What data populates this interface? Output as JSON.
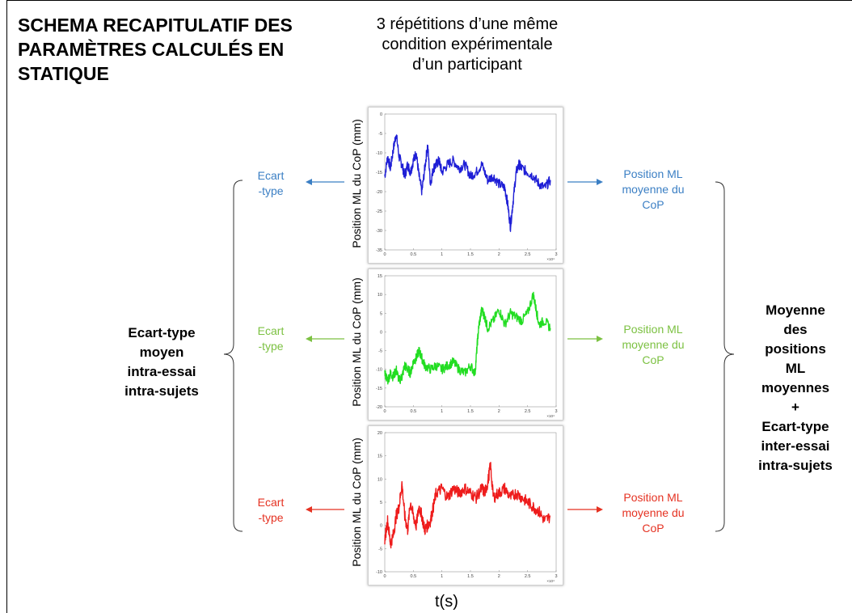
{
  "title": "SCHEMA RECAPITULATIF DES PARAMÈTRES CALCULÉS EN STATIQUE",
  "subtitle": "3 répétitions d’une même condition expérimentale d’un participant",
  "x_axis_label": "t(s)",
  "left_summary": [
    "Ecart-type",
    "moyen",
    "intra-essai",
    "intra-sujets"
  ],
  "right_summary": [
    "Moyenne",
    "des",
    "positions",
    "ML",
    "moyennes",
    "+",
    "Ecart-type",
    "inter-essai",
    "intra-sujets"
  ],
  "trials": [
    {
      "color": "#1f1fd6",
      "text_color": "#3b7fc4",
      "ylabel": "Position ML du CoP (mm)",
      "left_annotation": [
        "Ecart",
        "-type"
      ],
      "right_annotation": [
        "Position ML",
        "moyenne du",
        "CoP"
      ]
    },
    {
      "color": "#22dd22",
      "text_color": "#7cc142",
      "ylabel": "Position ML du CoP (mm)",
      "left_annotation": [
        "Ecart",
        "-type"
      ],
      "right_annotation": [
        "Position ML",
        "moyenne du",
        "CoP"
      ]
    },
    {
      "color": "#ee1c1c",
      "text_color": "#e53222",
      "ylabel": "Position ML du CoP (mm)",
      "left_annotation": [
        "Ecart",
        "-type"
      ],
      "right_annotation": [
        "Position ML",
        "moyenne du",
        "CoP"
      ]
    }
  ],
  "chart_data": [
    {
      "type": "line",
      "series": [
        {
          "color": "#1f1fd6",
          "x": [
            0,
            0.05,
            0.1,
            0.15,
            0.2,
            0.25,
            0.3,
            0.35,
            0.4,
            0.45,
            0.5,
            0.55,
            0.6,
            0.65,
            0.7,
            0.75,
            0.8,
            0.85,
            0.9,
            0.95,
            1.0,
            1.1,
            1.2,
            1.3,
            1.4,
            1.5,
            1.6,
            1.7,
            1.8,
            1.9,
            2.0,
            2.1,
            2.15,
            2.2,
            2.25,
            2.3,
            2.35,
            2.4,
            2.5,
            2.6,
            2.7,
            2.8,
            2.9
          ],
          "y": [
            -16,
            -11,
            -14,
            -9,
            -5,
            -11,
            -13,
            -16,
            -13,
            -15,
            -12,
            -10,
            -16,
            -20,
            -14,
            -8,
            -18,
            -14,
            -13,
            -12,
            -15,
            -13,
            -12,
            -14,
            -13,
            -16,
            -15,
            -13,
            -17,
            -16,
            -18,
            -19,
            -23,
            -29,
            -22,
            -15,
            -13,
            -14,
            -15,
            -16,
            -18,
            -19,
            -17
          ]
        }
      ],
      "xticks": [
        "0",
        "0.5",
        "1",
        "1.5",
        "2",
        "2.5",
        "3"
      ],
      "yticks": [
        "0",
        "-5",
        "-10",
        "-15",
        "-20",
        "-25",
        "-30",
        "-35"
      ],
      "xlim": [
        0,
        3
      ],
      "ylim": [
        -35,
        0
      ],
      "x_multiplier": "×10⁴"
    },
    {
      "type": "line",
      "series": [
        {
          "color": "#22dd22",
          "x": [
            0,
            0.05,
            0.1,
            0.15,
            0.2,
            0.25,
            0.3,
            0.35,
            0.4,
            0.45,
            0.5,
            0.55,
            0.6,
            0.65,
            0.7,
            0.8,
            0.9,
            1.0,
            1.1,
            1.2,
            1.3,
            1.4,
            1.5,
            1.58,
            1.62,
            1.65,
            1.7,
            1.75,
            1.8,
            1.9,
            2.0,
            2.1,
            2.2,
            2.3,
            2.4,
            2.5,
            2.6,
            2.65,
            2.7,
            2.8,
            2.9
          ],
          "y": [
            -11,
            -13,
            -11,
            -12,
            -10,
            -13,
            -12,
            -9,
            -10,
            -11,
            -8,
            -7,
            -5,
            -7,
            -9,
            -10,
            -9,
            -10,
            -9,
            -8,
            -10,
            -11,
            -9,
            -11,
            -3,
            2,
            6,
            4,
            1,
            3,
            6,
            2,
            5,
            4,
            3,
            5,
            10,
            6,
            2,
            3,
            1
          ]
        }
      ],
      "xticks": [
        "0",
        "0.5",
        "1",
        "1.5",
        "2",
        "2.5",
        "3"
      ],
      "yticks": [
        "15",
        "10",
        "5",
        "0",
        "-5",
        "-10",
        "-15",
        "-20"
      ],
      "xlim": [
        0,
        3
      ],
      "ylim": [
        -20,
        15
      ],
      "x_multiplier": "×10⁴"
    },
    {
      "type": "line",
      "series": [
        {
          "color": "#ee1c1c",
          "x": [
            0,
            0.05,
            0.1,
            0.15,
            0.2,
            0.25,
            0.3,
            0.35,
            0.4,
            0.45,
            0.5,
            0.55,
            0.6,
            0.65,
            0.7,
            0.75,
            0.8,
            0.85,
            0.9,
            1.0,
            1.1,
            1.2,
            1.3,
            1.4,
            1.5,
            1.6,
            1.7,
            1.75,
            1.8,
            1.85,
            1.9,
            2.0,
            2.1,
            2.2,
            2.3,
            2.4,
            2.5,
            2.6,
            2.7,
            2.8,
            2.9
          ],
          "y": [
            -3,
            1,
            -4,
            -2,
            2,
            4,
            9,
            2,
            -1,
            5,
            2,
            0,
            4,
            2,
            -1,
            0,
            1,
            4,
            7,
            8,
            6,
            8,
            7,
            8,
            7,
            6,
            8,
            7,
            9,
            13,
            6,
            7,
            8,
            6,
            7,
            6,
            5,
            4,
            3,
            1,
            2
          ]
        }
      ],
      "xticks": [
        "0",
        "0.5",
        "1",
        "1.5",
        "2",
        "2.5",
        "3"
      ],
      "yticks": [
        "20",
        "15",
        "10",
        "5",
        "0",
        "-5",
        "-10"
      ],
      "xlim": [
        0,
        3
      ],
      "ylim": [
        -10,
        20
      ],
      "x_multiplier": "×10⁴"
    }
  ]
}
